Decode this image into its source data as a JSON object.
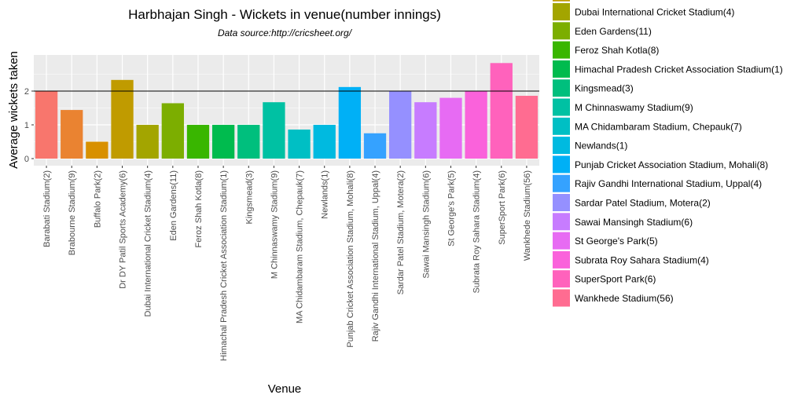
{
  "chart_data": {
    "type": "bar",
    "title": "Harbhajan Singh - Wickets in venue(number innings)",
    "subtitle": "Data source:http://cricsheet.org/",
    "xlabel": "Venue",
    "ylabel": "Average wickets taken",
    "ylim": [
      0,
      3
    ],
    "yticks": [
      0,
      1,
      2
    ],
    "grid": true,
    "reference_line": 2.0,
    "legend_position": "right",
    "categories": [
      "Barabati Stadium(2)",
      "Brabourne Stadium(9)",
      "Buffalo Park(2)",
      "Dr DY Patil Sports Academy(6)",
      "Dubai International Cricket Stadium(4)",
      "Eden Gardens(11)",
      "Feroz Shah Kotla(8)",
      "Himachal Pradesh Cricket Association Stadium(1)",
      "Kingsmead(3)",
      "M Chinnaswamy Stadium(9)",
      "MA Chidambaram Stadium, Chepauk(7)",
      "Newlands(1)",
      "Punjab Cricket Association Stadium, Mohali(8)",
      "Rajiv Gandhi International Stadium, Uppal(4)",
      "Sardar Patel Stadium, Motera(2)",
      "Sawai Mansingh Stadium(6)",
      "St George's Park(5)",
      "Subrata Roy Sahara Stadium(4)",
      "SuperSport Park(6)",
      "Wankhede Stadium(56)"
    ],
    "values": [
      2.0,
      1.44,
      0.5,
      2.33,
      1.0,
      1.64,
      1.0,
      1.0,
      1.0,
      1.67,
      0.86,
      1.0,
      2.12,
      0.75,
      2.0,
      1.67,
      1.8,
      2.0,
      2.83,
      1.86
    ],
    "colors": [
      "#F8766D",
      "#EA8331",
      "#D89000",
      "#C09B00",
      "#A3A500",
      "#7CAE00",
      "#39B600",
      "#00BB4E",
      "#00BF7D",
      "#00C1A3",
      "#00BFC4",
      "#00BAE0",
      "#00B0F6",
      "#35A2FF",
      "#9590FF",
      "#C77CFF",
      "#E76BF3",
      "#FA62DB",
      "#FF62BC",
      "#FF6C91"
    ],
    "legend_first_visible_index": 4
  }
}
